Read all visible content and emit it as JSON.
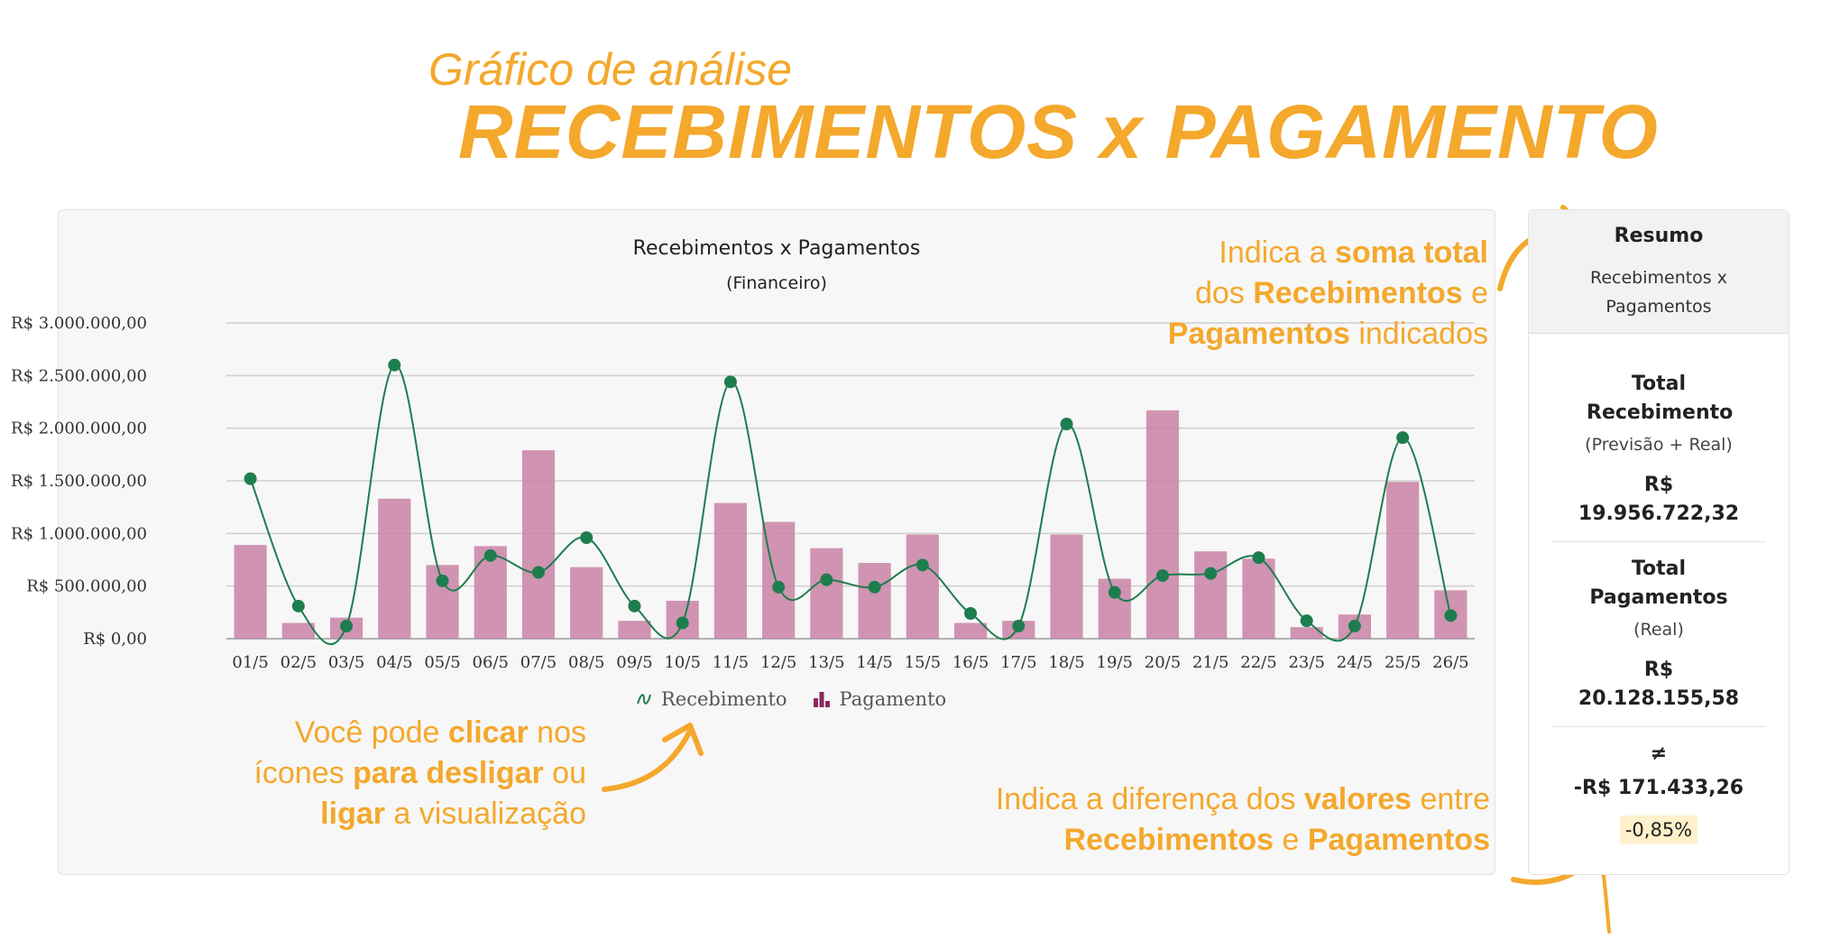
{
  "header": {
    "subtitle": "Gráfico de análise",
    "title": "RECEBIMENTOS x PAGAMENTO"
  },
  "chart_data": {
    "type": "bar",
    "title": "Recebimentos x Pagamentos",
    "subtitle": "(Financeiro)",
    "categories": [
      "01/5",
      "02/5",
      "03/5",
      "04/5",
      "05/5",
      "06/5",
      "07/5",
      "08/5",
      "09/5",
      "10/5",
      "11/5",
      "12/5",
      "13/5",
      "14/5",
      "15/5",
      "16/5",
      "17/5",
      "18/5",
      "19/5",
      "20/5",
      "21/5",
      "22/5",
      "23/5",
      "24/5",
      "25/5",
      "26/5"
    ],
    "ylim": [
      0,
      3000000
    ],
    "yticks": [
      0,
      500000,
      1000000,
      1500000,
      2000000,
      2500000,
      3000000
    ],
    "ytick_labels": [
      "R$ 0,00",
      "R$ 500.000,00",
      "R$ 1.000.000,00",
      "R$ 1.500.000,00",
      "R$ 2.000.000,00",
      "R$ 2.500.000,00",
      "R$ 3.000.000,00"
    ],
    "grid": true,
    "legend_position": "bottom",
    "series": [
      {
        "name": "Recebimento",
        "type": "line",
        "color": "#1e7d4f",
        "values": [
          1520000,
          310000,
          120000,
          2600000,
          550000,
          790000,
          630000,
          960000,
          310000,
          150000,
          2440000,
          490000,
          560000,
          490000,
          700000,
          240000,
          120000,
          2040000,
          440000,
          600000,
          620000,
          770000,
          170000,
          120000,
          1910000,
          220000
        ]
      },
      {
        "name": "Pagamento",
        "type": "bar",
        "color": "#c982a6",
        "values": [
          890000,
          150000,
          200000,
          1330000,
          700000,
          880000,
          1790000,
          680000,
          170000,
          360000,
          1290000,
          1110000,
          860000,
          720000,
          990000,
          150000,
          170000,
          990000,
          570000,
          2170000,
          830000,
          760000,
          110000,
          230000,
          1490000,
          460000
        ]
      }
    ]
  },
  "legend": {
    "recebimento": "Recebimento",
    "pagamento": "Pagamento",
    "line_icon": "line-series-icon",
    "bar_icon": "bar-series-icon"
  },
  "annotations": {
    "top_right": {
      "p1": "Indica a ",
      "b1": "soma total",
      "p2": "dos ",
      "b2": "Recebimentos",
      "p3": " e",
      "b3": "Pagamentos",
      "p4": " indicados"
    },
    "bottom_left": {
      "p1": "Você pode ",
      "b1": "clicar",
      "p2": " nos",
      "p3": "ícones ",
      "b2": "para desligar",
      "p4": " ou",
      "b3": "ligar",
      "p5": " a visualização"
    },
    "bottom_right": {
      "p1": "Indica a diferença dos ",
      "b1": "valores",
      "p2": " entre",
      "b2": "Recebimentos",
      "p3": " e ",
      "b3": "Pagamentos"
    }
  },
  "summary": {
    "title": "Resumo",
    "subtitle": "Recebimentos x Pagamentos",
    "total_receb_label": "Total Recebimento",
    "total_receb_note": "(Previsão + Real)",
    "total_receb_currency": "R$",
    "total_receb_value": "19.956.722,32",
    "total_pag_label": "Total Pagamentos",
    "total_pag_note": "(Real)",
    "total_pag_currency": "R$",
    "total_pag_value": "20.128.155,58",
    "diff_symbol": "≠",
    "diff_value": "-R$ 171.433,26",
    "diff_pct": "-0,85%"
  },
  "colors": {
    "accent": "#f4a82c",
    "line": "#1e7d4f",
    "bar": "#c982a6"
  }
}
